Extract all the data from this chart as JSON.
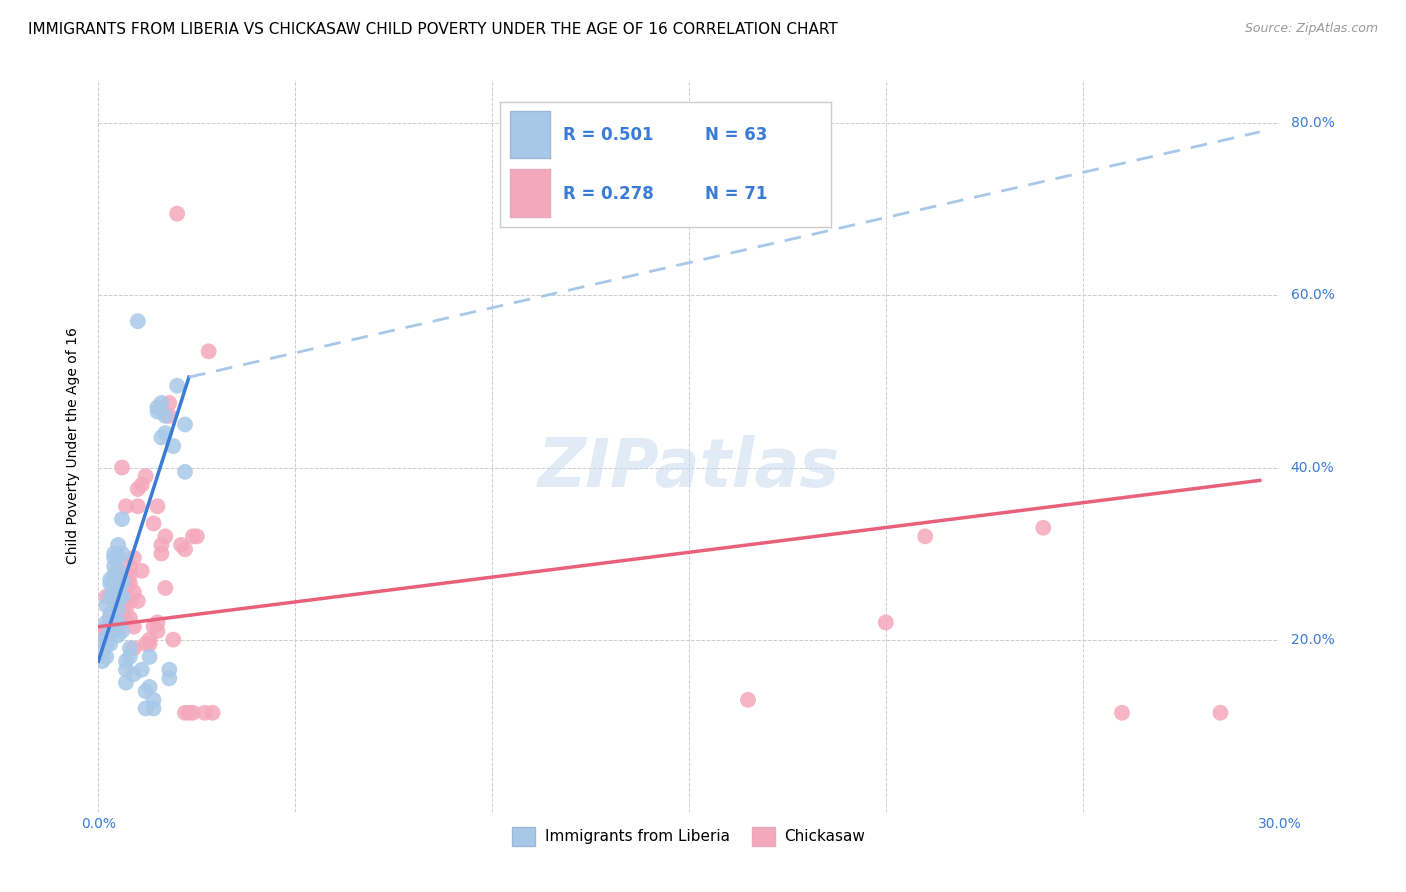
{
  "title": "IMMIGRANTS FROM LIBERIA VS CHICKASAW CHILD POVERTY UNDER THE AGE OF 16 CORRELATION CHART",
  "source": "Source: ZipAtlas.com",
  "ylabel": "Child Poverty Under the Age of 16",
  "xmin": 0.0,
  "xmax": 0.3,
  "ymin": 0.0,
  "ymax": 0.85,
  "x_ticks": [
    0.0,
    0.05,
    0.1,
    0.15,
    0.2,
    0.25,
    0.3
  ],
  "y_ticks": [
    0.0,
    0.2,
    0.4,
    0.6,
    0.8
  ],
  "color_blue": "#A8C8E8",
  "color_pink": "#F4A8BC",
  "color_line_blue_solid": "#3A7BD5",
  "color_line_blue_dashed": "#A8C8E8",
  "color_line_pink": "#E8607A",
  "watermark": "ZIPatlas",
  "title_fontsize": 11,
  "source_fontsize": 9,
  "axis_label_fontsize": 10,
  "tick_fontsize": 10,
  "legend_color": "#3A7BD5",
  "blue_scatter": [
    [
      0.001,
      0.175
    ],
    [
      0.001,
      0.2
    ],
    [
      0.001,
      0.185
    ],
    [
      0.002,
      0.22
    ],
    [
      0.002,
      0.195
    ],
    [
      0.002,
      0.18
    ],
    [
      0.002,
      0.24
    ],
    [
      0.003,
      0.21
    ],
    [
      0.003,
      0.195
    ],
    [
      0.003,
      0.27
    ],
    [
      0.003,
      0.265
    ],
    [
      0.003,
      0.25
    ],
    [
      0.003,
      0.23
    ],
    [
      0.003,
      0.215
    ],
    [
      0.004,
      0.3
    ],
    [
      0.004,
      0.275
    ],
    [
      0.004,
      0.26
    ],
    [
      0.004,
      0.245
    ],
    [
      0.004,
      0.22
    ],
    [
      0.004,
      0.21
    ],
    [
      0.004,
      0.295
    ],
    [
      0.004,
      0.285
    ],
    [
      0.005,
      0.27
    ],
    [
      0.005,
      0.255
    ],
    [
      0.005,
      0.235
    ],
    [
      0.005,
      0.22
    ],
    [
      0.005,
      0.205
    ],
    [
      0.005,
      0.31
    ],
    [
      0.005,
      0.295
    ],
    [
      0.005,
      0.28
    ],
    [
      0.006,
      0.265
    ],
    [
      0.006,
      0.25
    ],
    [
      0.006,
      0.21
    ],
    [
      0.006,
      0.34
    ],
    [
      0.006,
      0.3
    ],
    [
      0.006,
      0.27
    ],
    [
      0.006,
      0.25
    ],
    [
      0.007,
      0.175
    ],
    [
      0.007,
      0.165
    ],
    [
      0.007,
      0.15
    ],
    [
      0.008,
      0.19
    ],
    [
      0.008,
      0.18
    ],
    [
      0.009,
      0.16
    ],
    [
      0.01,
      0.57
    ],
    [
      0.011,
      0.165
    ],
    [
      0.012,
      0.14
    ],
    [
      0.012,
      0.12
    ],
    [
      0.013,
      0.18
    ],
    [
      0.013,
      0.145
    ],
    [
      0.014,
      0.13
    ],
    [
      0.014,
      0.12
    ],
    [
      0.015,
      0.47
    ],
    [
      0.015,
      0.465
    ],
    [
      0.016,
      0.435
    ],
    [
      0.016,
      0.475
    ],
    [
      0.017,
      0.46
    ],
    [
      0.017,
      0.44
    ],
    [
      0.018,
      0.165
    ],
    [
      0.018,
      0.155
    ],
    [
      0.019,
      0.425
    ],
    [
      0.02,
      0.495
    ],
    [
      0.022,
      0.45
    ],
    [
      0.022,
      0.395
    ]
  ],
  "pink_scatter": [
    [
      0.001,
      0.205
    ],
    [
      0.002,
      0.25
    ],
    [
      0.002,
      0.21
    ],
    [
      0.003,
      0.225
    ],
    [
      0.003,
      0.22
    ],
    [
      0.003,
      0.21
    ],
    [
      0.004,
      0.235
    ],
    [
      0.004,
      0.225
    ],
    [
      0.005,
      0.245
    ],
    [
      0.005,
      0.235
    ],
    [
      0.005,
      0.225
    ],
    [
      0.005,
      0.215
    ],
    [
      0.006,
      0.255
    ],
    [
      0.006,
      0.245
    ],
    [
      0.006,
      0.235
    ],
    [
      0.006,
      0.225
    ],
    [
      0.006,
      0.4
    ],
    [
      0.007,
      0.265
    ],
    [
      0.007,
      0.255
    ],
    [
      0.007,
      0.245
    ],
    [
      0.007,
      0.235
    ],
    [
      0.007,
      0.225
    ],
    [
      0.007,
      0.275
    ],
    [
      0.007,
      0.265
    ],
    [
      0.007,
      0.355
    ],
    [
      0.008,
      0.245
    ],
    [
      0.008,
      0.225
    ],
    [
      0.008,
      0.285
    ],
    [
      0.008,
      0.275
    ],
    [
      0.008,
      0.265
    ],
    [
      0.009,
      0.295
    ],
    [
      0.009,
      0.255
    ],
    [
      0.009,
      0.215
    ],
    [
      0.009,
      0.19
    ],
    [
      0.01,
      0.375
    ],
    [
      0.01,
      0.355
    ],
    [
      0.01,
      0.245
    ],
    [
      0.011,
      0.38
    ],
    [
      0.011,
      0.28
    ],
    [
      0.012,
      0.39
    ],
    [
      0.012,
      0.195
    ],
    [
      0.013,
      0.2
    ],
    [
      0.013,
      0.195
    ],
    [
      0.014,
      0.335
    ],
    [
      0.014,
      0.215
    ],
    [
      0.015,
      0.355
    ],
    [
      0.015,
      0.22
    ],
    [
      0.015,
      0.21
    ],
    [
      0.016,
      0.31
    ],
    [
      0.016,
      0.3
    ],
    [
      0.017,
      0.32
    ],
    [
      0.017,
      0.26
    ],
    [
      0.018,
      0.475
    ],
    [
      0.018,
      0.46
    ],
    [
      0.019,
      0.2
    ],
    [
      0.02,
      0.695
    ],
    [
      0.021,
      0.31
    ],
    [
      0.022,
      0.305
    ],
    [
      0.022,
      0.115
    ],
    [
      0.023,
      0.115
    ],
    [
      0.024,
      0.32
    ],
    [
      0.024,
      0.115
    ],
    [
      0.025,
      0.32
    ],
    [
      0.027,
      0.115
    ],
    [
      0.028,
      0.535
    ],
    [
      0.029,
      0.115
    ],
    [
      0.165,
      0.13
    ],
    [
      0.2,
      0.22
    ],
    [
      0.21,
      0.32
    ],
    [
      0.24,
      0.33
    ],
    [
      0.26,
      0.115
    ],
    [
      0.285,
      0.115
    ]
  ],
  "blue_line_solid": [
    [
      0.0,
      0.175
    ],
    [
      0.023,
      0.505
    ]
  ],
  "blue_line_dashed": [
    [
      0.023,
      0.505
    ],
    [
      0.295,
      0.79
    ]
  ],
  "pink_line": [
    [
      0.0,
      0.215
    ],
    [
      0.295,
      0.385
    ]
  ]
}
